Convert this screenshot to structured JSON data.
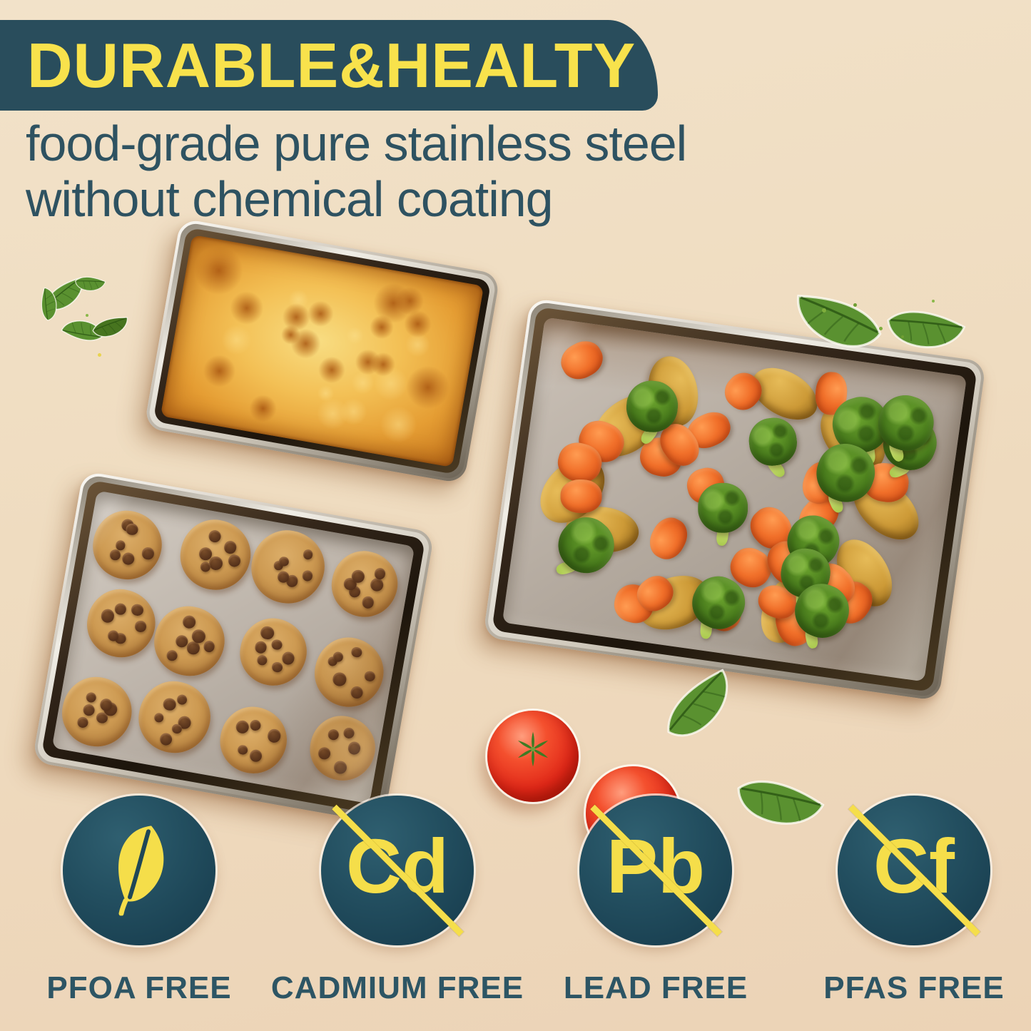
{
  "header": {
    "title": "DURABLE&HEALTY",
    "subtitle_line1": "food-grade pure stainless steel",
    "subtitle_line2": "without chemical coating"
  },
  "colors": {
    "background_beige": "#efdcc0",
    "banner_teal": "#294d5c",
    "accent_yellow": "#f5de4a",
    "text_teal": "#2e5261",
    "badge_fill": "#1f4757",
    "tomato_red": "#e02818",
    "basil_green": "#5a9130"
  },
  "scene": {
    "pans": [
      {
        "name": "small-rectangular-pan",
        "food": "baked cheese casserole"
      },
      {
        "name": "large-baking-sheet",
        "food": "roasted potatoes, carrots and broccoli"
      },
      {
        "name": "cookie-sheet",
        "food": "chocolate chip cookies",
        "cookie_count": 12,
        "cookie_columns": 4,
        "cookie_rows": 3
      }
    ],
    "decorations": [
      "basil-leaves",
      "two-tomatoes",
      "herb-crumbs"
    ]
  },
  "badges": [
    {
      "icon": "leaf-icon",
      "symbol": "",
      "label": "PFOA FREE",
      "struck": false
    },
    {
      "icon": "element-symbol",
      "symbol": "Cd",
      "label": "CADMIUM FREE",
      "struck": true
    },
    {
      "icon": "element-symbol",
      "symbol": "Pb",
      "label": "LEAD FREE",
      "struck": true
    },
    {
      "icon": "element-symbol",
      "symbol": "Cf",
      "label": "PFAS FREE",
      "struck": true
    }
  ]
}
